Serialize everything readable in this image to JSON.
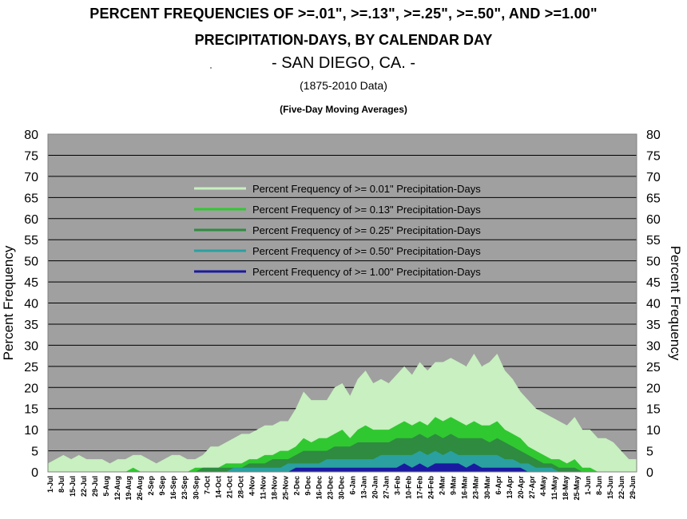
{
  "titles": {
    "line1": "PERCENT FREQUENCIES OF >=.01\", >=.13\", >=.25\", >=.50\", AND >=1.00\"",
    "line2": "PRECIPITATION-DAYS, BY CALENDAR DAY",
    "line3": "- SAN DIEGO, CA. -",
    "line4": "(1875-2010 Data)",
    "line5": "(Five-Day Moving Averages)"
  },
  "chart_data": {
    "type": "area",
    "ylabel_left": "Percent Frequency",
    "ylabel_right": "Percent Frequency",
    "ylim": [
      0,
      80
    ],
    "yticks": [
      0,
      5,
      10,
      15,
      20,
      25,
      30,
      35,
      40,
      45,
      50,
      55,
      60,
      65,
      70,
      75,
      80
    ],
    "grid": true,
    "legend_position": "upper-middle",
    "background_color": "#a0a0a0",
    "x_tick_labels": [
      "1-Jul",
      "8-Jul",
      "15-Jul",
      "22-Jul",
      "29-Jul",
      "5-Aug",
      "12-Aug",
      "19-Aug",
      "26-Aug",
      "2-Sep",
      "9-Sep",
      "16-Sep",
      "23-Sep",
      "30-Sep",
      "7-Oct",
      "14-Oct",
      "21-Oct",
      "28-Oct",
      "4-Nov",
      "11-Nov",
      "18-Nov",
      "25-Nov",
      "2-Dec",
      "9-Dec",
      "16-Dec",
      "23-Dec",
      "30-Dec",
      "6-Jan",
      "13-Jan",
      "20-Jan",
      "27-Jan",
      "3-Feb",
      "10-Feb",
      "17-Feb",
      "24-Feb",
      "2-Mar",
      "9-Mar",
      "16-Mar",
      "23-Mar",
      "30-Mar",
      "6-Apr",
      "13-Apr",
      "20-Apr",
      "27-Apr",
      "4-May",
      "11-May",
      "18-May",
      "25-May",
      "1-Jun",
      "8-Jun",
      "15-Jun",
      "22-Jun",
      "29-Jun"
    ],
    "series": [
      {
        "name": "Percent Frequency of >= 0.01\" Precipitation-Days",
        "color": "#c8f0c0",
        "values": [
          2,
          3,
          4,
          3,
          4,
          3,
          3,
          3,
          2,
          3,
          3,
          4,
          4,
          3,
          2,
          3,
          4,
          4,
          3,
          3,
          4,
          6,
          6,
          7,
          8,
          9,
          9,
          10,
          11,
          11,
          12,
          12,
          15,
          19,
          17,
          17,
          17,
          20,
          21,
          18,
          22,
          24,
          21,
          22,
          21,
          23,
          25,
          23,
          26,
          24,
          26,
          26,
          27,
          26,
          25,
          28,
          25,
          26,
          28,
          24,
          22,
          19,
          17,
          15,
          14,
          13,
          12,
          11,
          13,
          10,
          10,
          8,
          8,
          7,
          5,
          3,
          3
        ]
      },
      {
        "name": "Percent Frequency of >= 0.13\" Precipitation-Days",
        "color": "#30c830",
        "values": [
          0,
          0,
          0,
          0,
          0,
          0,
          0,
          0,
          0,
          0,
          0,
          1,
          0,
          0,
          0,
          0,
          0,
          0,
          0,
          1,
          1,
          1,
          1,
          2,
          2,
          2,
          3,
          3,
          4,
          4,
          5,
          5,
          6,
          8,
          7,
          8,
          8,
          9,
          10,
          8,
          10,
          11,
          10,
          10,
          10,
          11,
          12,
          11,
          12,
          11,
          13,
          12,
          13,
          12,
          11,
          12,
          11,
          11,
          12,
          10,
          9,
          8,
          6,
          5,
          4,
          3,
          3,
          2,
          3,
          1,
          1,
          0,
          0,
          0,
          0,
          0,
          0
        ]
      },
      {
        "name": "Percent Frequency of >= 0.25\" Precipitation-Days",
        "color": "#2e8b40",
        "values": [
          0,
          0,
          0,
          0,
          0,
          0,
          0,
          0,
          0,
          0,
          0,
          0,
          0,
          0,
          0,
          0,
          0,
          0,
          0,
          0,
          1,
          1,
          1,
          1,
          1,
          1,
          2,
          2,
          2,
          3,
          3,
          3,
          4,
          5,
          5,
          5,
          5,
          6,
          6,
          6,
          7,
          7,
          7,
          7,
          7,
          8,
          8,
          8,
          9,
          8,
          9,
          8,
          9,
          8,
          8,
          8,
          8,
          7,
          8,
          7,
          6,
          5,
          4,
          3,
          2,
          2,
          1,
          1,
          1,
          0,
          0,
          0,
          0,
          0,
          0,
          0,
          0
        ]
      },
      {
        "name": "Percent Frequency of >= 0.50\" Precipitation-Days",
        "color": "#2aa0a0",
        "values": [
          0,
          0,
          0,
          0,
          0,
          0,
          0,
          0,
          0,
          0,
          0,
          0,
          0,
          0,
          0,
          0,
          0,
          0,
          0,
          0,
          0,
          0,
          0,
          0,
          1,
          1,
          1,
          1,
          1,
          1,
          1,
          2,
          2,
          2,
          2,
          2,
          3,
          3,
          3,
          3,
          3,
          3,
          3,
          4,
          4,
          4,
          4,
          4,
          5,
          4,
          5,
          4,
          5,
          4,
          4,
          4,
          4,
          4,
          4,
          3,
          3,
          2,
          2,
          1,
          1,
          1,
          0,
          0,
          0,
          0,
          0,
          0,
          0,
          0,
          0,
          0,
          0
        ]
      },
      {
        "name": "Percent Frequency of >= 1.00\" Precipitation-Days",
        "color": "#1a1aa0",
        "values": [
          0,
          0,
          0,
          0,
          0,
          0,
          0,
          0,
          0,
          0,
          0,
          0,
          0,
          0,
          0,
          0,
          0,
          0,
          0,
          0,
          0,
          0,
          0,
          0,
          0,
          0,
          0,
          0,
          0,
          0,
          0,
          0,
          1,
          1,
          1,
          1,
          1,
          1,
          1,
          1,
          1,
          1,
          1,
          1,
          1,
          1,
          2,
          1,
          2,
          1,
          2,
          2,
          2,
          2,
          1,
          2,
          1,
          1,
          1,
          1,
          1,
          1,
          0,
          0,
          0,
          0,
          0,
          0,
          0,
          0,
          0,
          0,
          0,
          0,
          0,
          0,
          0
        ]
      }
    ]
  }
}
